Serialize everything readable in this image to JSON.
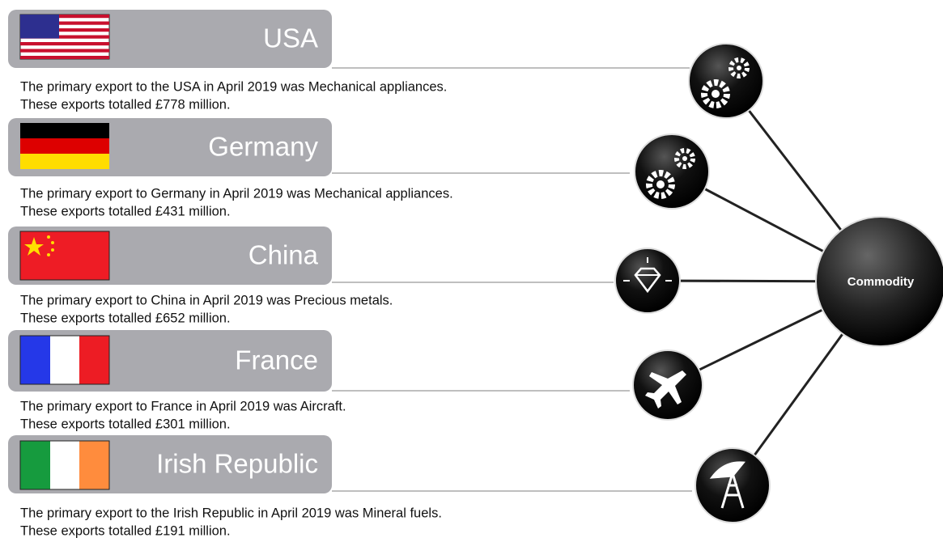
{
  "countries": [
    {
      "name": "USA",
      "line1": "The primary export to the USA in April 2019 was Mechanical appliances.",
      "line2": "These exports totalled £778 million."
    },
    {
      "name": "Germany",
      "line1": "The primary export to Germany in April 2019 was Mechanical appliances.",
      "line2": "These exports totalled £431 million."
    },
    {
      "name": "China",
      "line1": "The primary export to China in April 2019 was Precious metals.",
      "line2": "These exports totalled £652 million."
    },
    {
      "name": "France",
      "line1": "The primary export to France in April 2019 was Aircraft.",
      "line2": "These exports totalled £301 million."
    },
    {
      "name": "Irish Republic",
      "line1": "The primary export to the Irish Republic in April 2019 was Mineral fuels.",
      "line2": "These exports totalled £191 million."
    }
  ],
  "hub": {
    "label": "Commodity"
  }
}
